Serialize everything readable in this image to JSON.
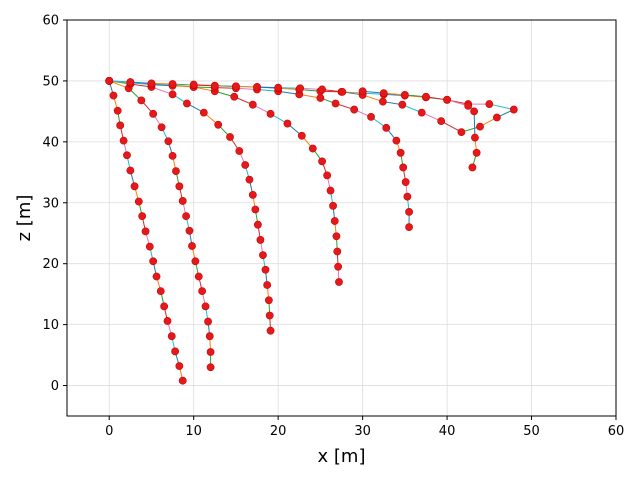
{
  "chart_data": {
    "type": "line",
    "xlabel": "x [m]",
    "ylabel": "z [m]",
    "xlim": [
      -5,
      60
    ],
    "ylim": [
      -5,
      60
    ],
    "xticks": [
      0,
      10,
      20,
      30,
      40,
      50,
      60
    ],
    "yticks": [
      0,
      10,
      20,
      30,
      40,
      50,
      60
    ],
    "grid": true,
    "point_color": "#e31a1c",
    "point_edge": "#d00000",
    "segment_colors": [
      "#1f77b4",
      "#ff7f0e",
      "#2ca02c",
      "#d62728",
      "#e377c2",
      "#17becf"
    ],
    "series": [
      {
        "points": [
          [
            0.0,
            50.0
          ],
          [
            0.5,
            47.6
          ],
          [
            1.0,
            45.1
          ],
          [
            1.3,
            42.7
          ],
          [
            1.7,
            40.2
          ],
          [
            2.1,
            37.8
          ],
          [
            2.5,
            35.3
          ],
          [
            3.0,
            32.7
          ],
          [
            3.5,
            30.2
          ],
          [
            3.9,
            27.8
          ],
          [
            4.3,
            25.3
          ],
          [
            4.8,
            22.8
          ],
          [
            5.2,
            20.4
          ],
          [
            5.6,
            17.9
          ],
          [
            6.1,
            15.5
          ],
          [
            6.5,
            13.0
          ],
          [
            6.9,
            10.6
          ],
          [
            7.4,
            8.1
          ],
          [
            7.8,
            5.6
          ],
          [
            8.3,
            3.2
          ],
          [
            8.7,
            0.8
          ]
        ]
      },
      {
        "points": [
          [
            0.0,
            50.0
          ],
          [
            2.3,
            48.8
          ],
          [
            3.8,
            46.8
          ],
          [
            5.2,
            44.6
          ],
          [
            6.2,
            42.4
          ],
          [
            7.0,
            40.1
          ],
          [
            7.5,
            37.7
          ],
          [
            7.9,
            35.2
          ],
          [
            8.3,
            32.7
          ],
          [
            8.7,
            30.3
          ],
          [
            9.1,
            27.8
          ],
          [
            9.5,
            25.4
          ],
          [
            9.8,
            22.9
          ],
          [
            10.2,
            20.4
          ],
          [
            10.6,
            17.9
          ],
          [
            11.0,
            15.5
          ],
          [
            11.4,
            13.0
          ],
          [
            11.7,
            10.5
          ],
          [
            11.9,
            8.1
          ],
          [
            12.0,
            5.5
          ],
          [
            12.0,
            3.0
          ]
        ]
      },
      {
        "points": [
          [
            0.0,
            50.0
          ],
          [
            2.5,
            49.5
          ],
          [
            5.0,
            49.0
          ],
          [
            7.5,
            47.8
          ],
          [
            9.2,
            46.3
          ],
          [
            11.2,
            44.8
          ],
          [
            12.9,
            42.8
          ],
          [
            14.3,
            40.8
          ],
          [
            15.4,
            38.5
          ],
          [
            16.1,
            36.2
          ],
          [
            16.6,
            33.8
          ],
          [
            17.0,
            31.3
          ],
          [
            17.3,
            28.9
          ],
          [
            17.6,
            26.4
          ],
          [
            17.9,
            23.9
          ],
          [
            18.2,
            21.4
          ],
          [
            18.5,
            19.0
          ],
          [
            18.7,
            16.5
          ],
          [
            18.9,
            14.0
          ],
          [
            19.0,
            11.5
          ],
          [
            19.1,
            9.0
          ]
        ]
      },
      {
        "points": [
          [
            0.0,
            50.0
          ],
          [
            2.5,
            49.8
          ],
          [
            5.0,
            49.5
          ],
          [
            7.5,
            49.3
          ],
          [
            10.0,
            49.0
          ],
          [
            12.5,
            48.3
          ],
          [
            14.8,
            47.4
          ],
          [
            17.0,
            46.1
          ],
          [
            19.1,
            44.6
          ],
          [
            21.1,
            43.0
          ],
          [
            22.8,
            41.0
          ],
          [
            24.1,
            38.9
          ],
          [
            25.2,
            36.8
          ],
          [
            25.8,
            34.5
          ],
          [
            26.2,
            32.0
          ],
          [
            26.5,
            29.5
          ],
          [
            26.7,
            27.0
          ],
          [
            26.9,
            24.5
          ],
          [
            27.0,
            22.0
          ],
          [
            27.1,
            19.5
          ],
          [
            27.2,
            17.0
          ]
        ]
      },
      {
        "points": [
          [
            0.0,
            50.0
          ],
          [
            2.5,
            49.7
          ],
          [
            5.0,
            49.4
          ],
          [
            7.5,
            49.2
          ],
          [
            10.0,
            49.0
          ],
          [
            12.5,
            48.9
          ],
          [
            15.0,
            48.8
          ],
          [
            17.5,
            48.6
          ],
          [
            20.0,
            48.3
          ],
          [
            22.5,
            47.8
          ],
          [
            25.0,
            47.2
          ],
          [
            26.8,
            46.3
          ],
          [
            29.0,
            45.3
          ],
          [
            31.0,
            44.1
          ],
          [
            32.8,
            42.3
          ],
          [
            34.0,
            40.2
          ],
          [
            34.5,
            38.2
          ],
          [
            34.8,
            35.8
          ],
          [
            35.1,
            33.4
          ],
          [
            35.3,
            31.0
          ],
          [
            35.5,
            28.5
          ],
          [
            35.5,
            26.0
          ]
        ]
      },
      {
        "points": [
          [
            0.0,
            50.0
          ],
          [
            2.5,
            49.8
          ],
          [
            5.0,
            49.6
          ],
          [
            7.5,
            49.5
          ],
          [
            10.0,
            49.3
          ],
          [
            12.5,
            49.2
          ],
          [
            15.0,
            49.1
          ],
          [
            17.5,
            49.0
          ],
          [
            20.0,
            48.8
          ],
          [
            22.5,
            48.6
          ],
          [
            25.0,
            48.3
          ],
          [
            27.5,
            48.2
          ],
          [
            30.0,
            48.0
          ],
          [
            32.5,
            47.8
          ],
          [
            35.0,
            47.6
          ],
          [
            37.5,
            47.3
          ],
          [
            40.0,
            46.9
          ],
          [
            42.5,
            46.2
          ],
          [
            45.0,
            46.2
          ],
          [
            47.9,
            45.3
          ],
          [
            45.9,
            44.0
          ],
          [
            43.9,
            42.5
          ],
          [
            41.7,
            41.6
          ],
          [
            39.3,
            43.4
          ],
          [
            37.0,
            44.8
          ],
          [
            34.7,
            46.1
          ],
          [
            32.4,
            46.6
          ],
          [
            30.0,
            47.7
          ],
          [
            27.6,
            48.2
          ],
          [
            25.2,
            48.6
          ],
          [
            22.6,
            48.8
          ],
          [
            20.0,
            48.9
          ],
          [
            17.5,
            49.0
          ],
          [
            15.0,
            49.1
          ],
          [
            12.5,
            49.2
          ],
          [
            10.0,
            49.4
          ]
        ]
      },
      {
        "points": [
          [
            30.0,
            48.3
          ],
          [
            32.5,
            48.0
          ],
          [
            35.0,
            47.7
          ],
          [
            37.5,
            47.4
          ],
          [
            40.0,
            46.9
          ],
          [
            42.5,
            45.9
          ],
          [
            43.2,
            45.0
          ],
          [
            43.3,
            40.7
          ],
          [
            43.5,
            38.2
          ],
          [
            43.0,
            35.8
          ]
        ]
      }
    ]
  }
}
